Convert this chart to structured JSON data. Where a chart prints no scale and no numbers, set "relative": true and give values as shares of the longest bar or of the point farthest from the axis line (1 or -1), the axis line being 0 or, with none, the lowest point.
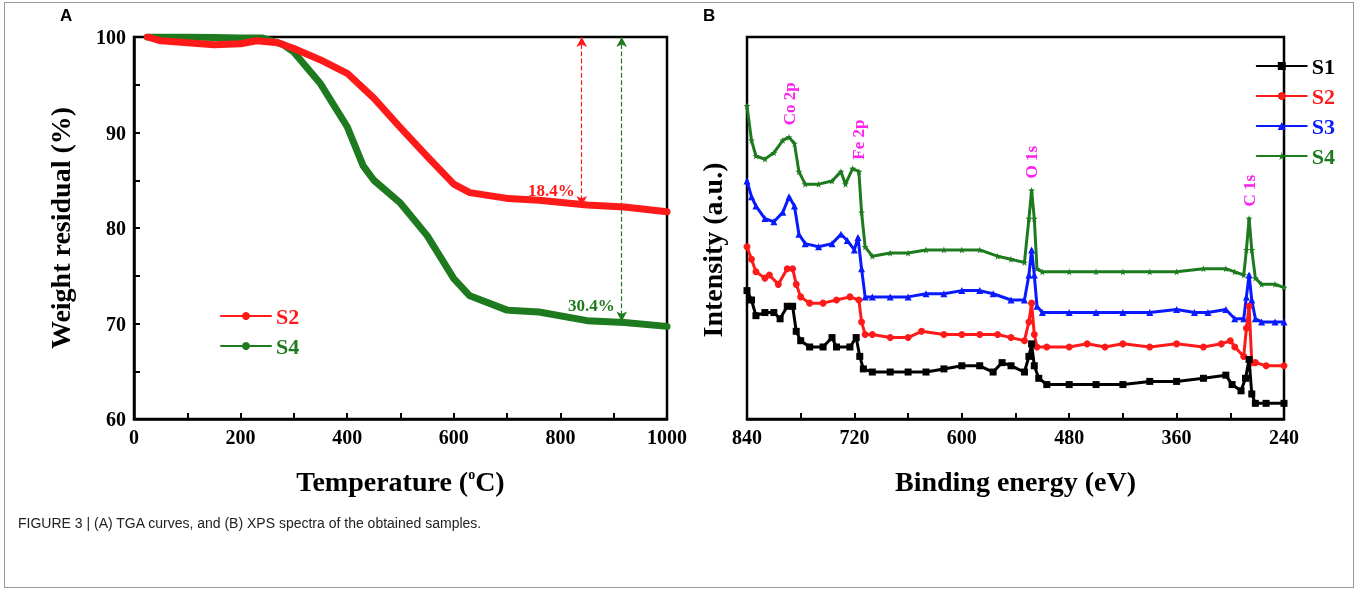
{
  "chart_data": [
    {
      "type": "line",
      "title": "A",
      "xlabel": "Temperature ($^{o}$C)",
      "ylabel": "Weight residual (%)",
      "xlim": [
        0,
        1000
      ],
      "xticks": [
        0,
        {
          "value": 100,
          "label": null
        },
        200,
        {
          "value": 300,
          "label": null
        },
        400,
        {
          "value": 500,
          "label": null
        },
        600,
        {
          "value": 700,
          "label": null
        },
        800,
        {
          "value": 900,
          "label": null
        },
        1000
      ],
      "ylim": [
        60,
        100
      ],
      "yticks": [
        60,
        {
          "value": 65,
          "label": null
        },
        70,
        {
          "value": 75,
          "label": null
        },
        80,
        {
          "value": 85,
          "label": null
        },
        90,
        {
          "value": 95,
          "label": null
        },
        100
      ],
      "legend": "left",
      "series": [
        {
          "name": "S2",
          "color": "#ff1a1a",
          "x": [
            25,
            50,
            100,
            150,
            200,
            230,
            270,
            300,
            350,
            400,
            450,
            500,
            550,
            600,
            630,
            700,
            760,
            850,
            920,
            1000
          ],
          "values": [
            100,
            99.6,
            99.4,
            99.2,
            99.3,
            99.6,
            99.4,
            98.8,
            97.6,
            96.2,
            93.6,
            90.5,
            87.5,
            84.6,
            83.7,
            83.1,
            82.9,
            82.4,
            82.2,
            81.7
          ]
        },
        {
          "name": "S4",
          "color": "#1e7a1e",
          "x": [
            25,
            100,
            200,
            240,
            280,
            300,
            350,
            400,
            430,
            450,
            500,
            550,
            600,
            630,
            700,
            760,
            850,
            920,
            1000
          ],
          "values": [
            100,
            100,
            99.9,
            99.9,
            99.2,
            98.4,
            95.1,
            90.6,
            86.5,
            85,
            82.6,
            79.2,
            74.7,
            72.9,
            71.4,
            71.2,
            70.3,
            70.1,
            69.7
          ]
        }
      ],
      "annotations": [
        {
          "text": "18.4%",
          "x": 840,
          "y": 82.3
        },
        {
          "text": "30.4%",
          "x": 915,
          "y": 70.2
        },
        "FIGURE 3 | (A) TGA curves, and (B) XPS spectra of the obtained samples."
      ]
    },
    {
      "type": "line",
      "title": "B",
      "xlabel": "Binding energy (eV)",
      "ylabel": "Intensity (a.u.)",
      "xlim": [
        840,
        240
      ],
      "xticks": [
        840,
        {
          "value": 780,
          "label": null
        },
        720,
        {
          "value": 660,
          "label": null
        },
        600,
        {
          "value": 540,
          "label": null
        },
        480,
        {
          "value": 420,
          "label": null
        },
        360,
        {
          "value": 300,
          "label": null
        },
        240
      ],
      "relative": true,
      "legend": "top right",
      "series": [
        {
          "name": "S1",
          "color": "#000000",
          "marker": "square",
          "x": [
            840,
            835,
            830,
            820,
            810,
            803,
            795,
            789,
            785,
            780,
            770,
            755,
            745,
            740,
            725,
            718,
            714,
            710,
            700,
            680,
            660,
            640,
            620,
            600,
            580,
            565,
            555,
            545,
            530,
            525,
            522,
            519,
            514,
            505,
            480,
            450,
            420,
            390,
            360,
            330,
            305,
            298,
            288,
            283,
            279,
            276,
            272,
            260,
            240
          ],
          "values": [
            0.41,
            0.38,
            0.33,
            0.34,
            0.34,
            0.32,
            0.36,
            0.36,
            0.28,
            0.25,
            0.23,
            0.23,
            0.26,
            0.23,
            0.23,
            0.26,
            0.2,
            0.16,
            0.15,
            0.15,
            0.15,
            0.15,
            0.16,
            0.17,
            0.17,
            0.15,
            0.18,
            0.17,
            0.15,
            0.2,
            0.24,
            0.17,
            0.13,
            0.11,
            0.11,
            0.11,
            0.11,
            0.12,
            0.12,
            0.13,
            0.14,
            0.11,
            0.09,
            0.13,
            0.19,
            0.08,
            0.05,
            0.05,
            0.05
          ]
        },
        {
          "name": "S2",
          "color": "#ff1a1a",
          "marker": "circle",
          "x": [
            840,
            835,
            830,
            820,
            815,
            805,
            795,
            789,
            785,
            780,
            770,
            755,
            740,
            725,
            715,
            712,
            708,
            700,
            680,
            660,
            645,
            620,
            600,
            580,
            560,
            545,
            530,
            525,
            522,
            519,
            516,
            505,
            480,
            460,
            440,
            420,
            390,
            360,
            330,
            310,
            300,
            295,
            285,
            282,
            279,
            276,
            272,
            260,
            240
          ],
          "values": [
            0.55,
            0.51,
            0.47,
            0.45,
            0.46,
            0.43,
            0.48,
            0.48,
            0.43,
            0.39,
            0.37,
            0.37,
            0.38,
            0.39,
            0.38,
            0.31,
            0.27,
            0.27,
            0.26,
            0.26,
            0.28,
            0.27,
            0.27,
            0.27,
            0.27,
            0.26,
            0.25,
            0.31,
            0.37,
            0.27,
            0.23,
            0.23,
            0.23,
            0.24,
            0.23,
            0.24,
            0.23,
            0.24,
            0.23,
            0.24,
            0.25,
            0.23,
            0.2,
            0.29,
            0.36,
            0.18,
            0.18,
            0.17,
            0.17
          ]
        },
        {
          "name": "S3",
          "color": "#0a1aff",
          "marker": "triangle",
          "x": [
            840,
            835,
            830,
            820,
            810,
            800,
            793,
            787,
            782,
            775,
            760,
            745,
            735,
            728,
            720,
            716,
            712,
            708,
            700,
            680,
            660,
            640,
            620,
            600,
            580,
            565,
            545,
            530,
            525,
            522,
            519,
            516,
            510,
            480,
            450,
            420,
            390,
            360,
            340,
            325,
            305,
            295,
            285,
            282,
            279,
            276,
            272,
            265,
            250,
            240
          ],
          "values": [
            0.76,
            0.71,
            0.68,
            0.64,
            0.63,
            0.66,
            0.71,
            0.68,
            0.59,
            0.56,
            0.55,
            0.56,
            0.59,
            0.57,
            0.54,
            0.58,
            0.48,
            0.39,
            0.39,
            0.39,
            0.39,
            0.4,
            0.4,
            0.41,
            0.41,
            0.4,
            0.38,
            0.38,
            0.46,
            0.54,
            0.46,
            0.36,
            0.34,
            0.34,
            0.34,
            0.34,
            0.34,
            0.35,
            0.34,
            0.34,
            0.35,
            0.32,
            0.32,
            0.39,
            0.46,
            0.38,
            0.32,
            0.31,
            0.31,
            0.31
          ]
        },
        {
          "name": "S4",
          "color": "#1e7a1e",
          "marker": "star",
          "x": [
            840,
            835,
            830,
            820,
            810,
            800,
            793,
            787,
            782,
            775,
            760,
            745,
            735,
            730,
            722,
            715,
            712,
            708,
            700,
            680,
            660,
            640,
            620,
            600,
            580,
            560,
            545,
            530,
            525,
            522,
            519,
            516,
            510,
            480,
            450,
            420,
            390,
            360,
            330,
            305,
            295,
            285,
            282,
            279,
            276,
            272,
            265,
            250,
            240
          ],
          "values": [
            1.0,
            0.89,
            0.84,
            0.83,
            0.85,
            0.89,
            0.9,
            0.88,
            0.79,
            0.75,
            0.75,
            0.76,
            0.79,
            0.75,
            0.8,
            0.79,
            0.66,
            0.55,
            0.52,
            0.53,
            0.53,
            0.54,
            0.54,
            0.54,
            0.54,
            0.52,
            0.51,
            0.5,
            0.64,
            0.73,
            0.64,
            0.48,
            0.47,
            0.47,
            0.47,
            0.47,
            0.47,
            0.47,
            0.48,
            0.48,
            0.47,
            0.46,
            0.54,
            0.64,
            0.54,
            0.45,
            0.43,
            0.43,
            0.42
          ]
        }
      ],
      "annotations": [
        {
          "text": "Co 2p",
          "x": 793,
          "y": 0.9
        },
        {
          "text": "Fe 2p",
          "x": 715,
          "y": 0.79
        },
        {
          "text": "O 1s",
          "x": 522,
          "y": 0.73
        },
        {
          "text": "C 1s",
          "x": 279,
          "y": 0.64
        }
      ]
    }
  ]
}
